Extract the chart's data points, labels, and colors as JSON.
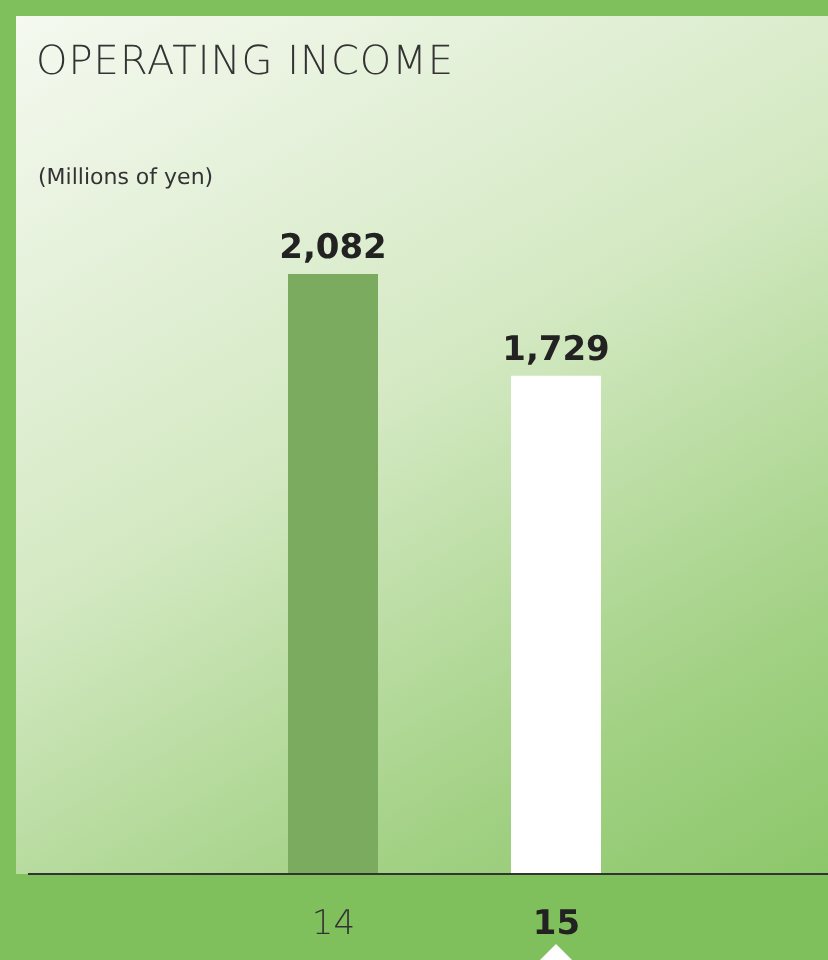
{
  "chart_data": {
    "type": "bar",
    "title": "OPERATING INCOME",
    "ylabel": "(Millions of yen)",
    "categories": [
      "14",
      "15"
    ],
    "values": [
      2082,
      1729
    ],
    "colors": [
      "#7aab5e",
      "#ffffff"
    ],
    "value_labels": [
      "2,082",
      "1,729"
    ]
  }
}
